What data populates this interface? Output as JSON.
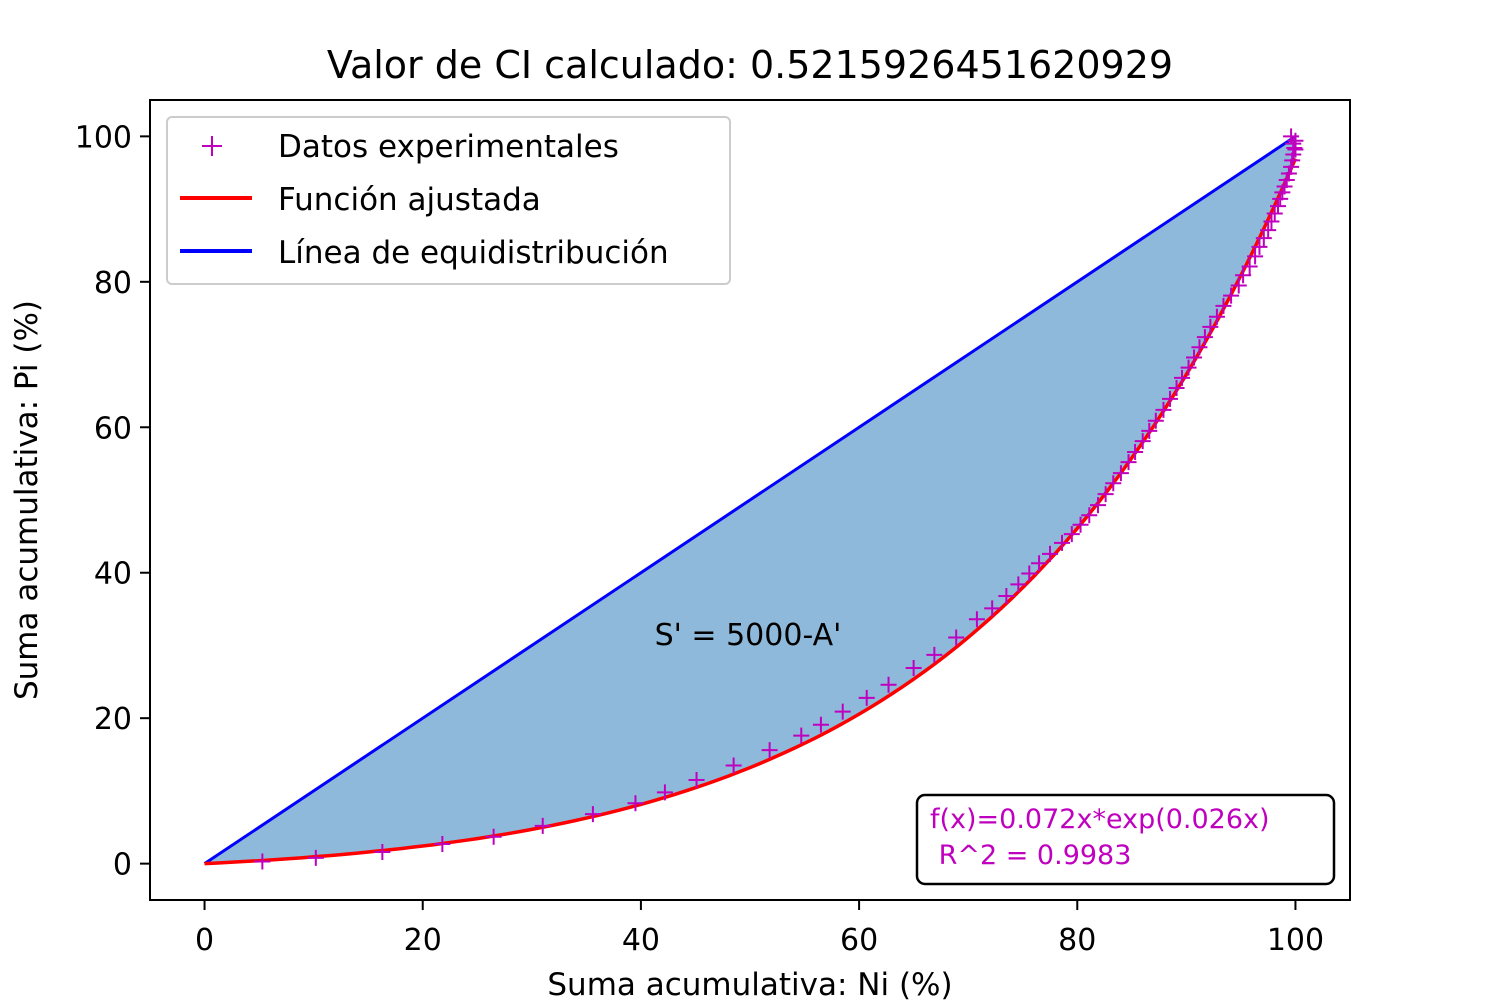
{
  "chart_data": {
    "type": "scatter",
    "title": "Valor de CI calculado: 0.5215926451620929",
    "xlabel": "Suma acumulativa: Ni (%)",
    "ylabel": "Suma acumulativa: Pi (%)",
    "xlim": [
      -5,
      105
    ],
    "ylim": [
      -5,
      105
    ],
    "xticks": [
      "0",
      "20",
      "40",
      "60",
      "80",
      "100"
    ],
    "yticks": [
      "0",
      "20",
      "40",
      "60",
      "80",
      "100"
    ],
    "grid": false,
    "legend_position": "top-left",
    "annotation": "S' = 5000-A'",
    "fit_box": {
      "line1": "f(x)=0.072x*exp(0.026x)",
      "line2": " R^2 = 0.9983",
      "position": "bottom-right",
      "color": "#bf00bf"
    },
    "fill_color": "#8fb9da",
    "series": [
      {
        "name": "Datos experimentales",
        "kind": "scatter",
        "marker": "+",
        "color": "#bf00bf",
        "x": [
          5.3,
          10.2,
          16.3,
          21.8,
          26.5,
          31.0,
          35.6,
          39.5,
          42.2,
          45.1,
          48.5,
          51.8,
          54.7,
          56.5,
          58.5,
          60.7,
          62.7,
          65.0,
          66.9,
          68.9,
          70.8,
          72.2,
          73.5,
          74.6,
          75.6,
          76.5,
          77.5,
          78.6,
          79.5,
          80.3,
          81.1,
          81.9,
          82.6,
          83.3,
          84.0,
          84.7,
          85.3,
          86.0,
          86.6,
          87.2,
          87.9,
          88.5,
          89.1,
          89.6,
          90.2,
          90.7,
          91.2,
          91.7,
          92.2,
          92.8,
          93.4,
          94.1,
          94.8,
          95.2,
          95.8,
          96.3,
          96.7,
          97.1,
          97.5,
          97.8,
          98.1,
          98.4,
          98.6,
          98.8,
          99.0,
          99.2,
          99.4,
          99.6,
          99.7,
          99.8,
          99.9,
          100.0,
          99.6,
          99.8,
          100.0
        ],
        "y": [
          0.3,
          0.8,
          1.6,
          2.7,
          3.7,
          5.2,
          6.8,
          8.3,
          9.8,
          11.5,
          13.5,
          15.6,
          17.6,
          19.1,
          20.9,
          22.8,
          24.6,
          26.9,
          28.7,
          31.1,
          33.6,
          35.1,
          36.8,
          38.4,
          39.9,
          41.3,
          42.6,
          44.1,
          45.3,
          46.6,
          47.9,
          49.3,
          50.8,
          52.3,
          53.7,
          55.2,
          56.6,
          58.1,
          59.5,
          60.9,
          62.4,
          63.9,
          65.4,
          66.8,
          68.2,
          69.6,
          71.0,
          72.4,
          73.8,
          75.2,
          76.7,
          78.1,
          79.5,
          80.9,
          82.1,
          83.5,
          84.8,
          86.0,
          87.1,
          88.3,
          89.4,
          90.4,
          91.4,
          92.3,
          93.1,
          94.0,
          94.9,
          95.8,
          96.7,
          97.5,
          98.4,
          99.4,
          100.0,
          99.0,
          98.2
        ]
      },
      {
        "name": "Función ajustada",
        "kind": "line",
        "color": "#ff0000",
        "formula": "0.072*x*exp(0.026*x)",
        "x_range": [
          0,
          100
        ]
      },
      {
        "name": "Línea de equidistribución",
        "kind": "line",
        "color": "#0000ff",
        "x": [
          0,
          100
        ],
        "y": [
          0,
          100
        ]
      }
    ]
  }
}
